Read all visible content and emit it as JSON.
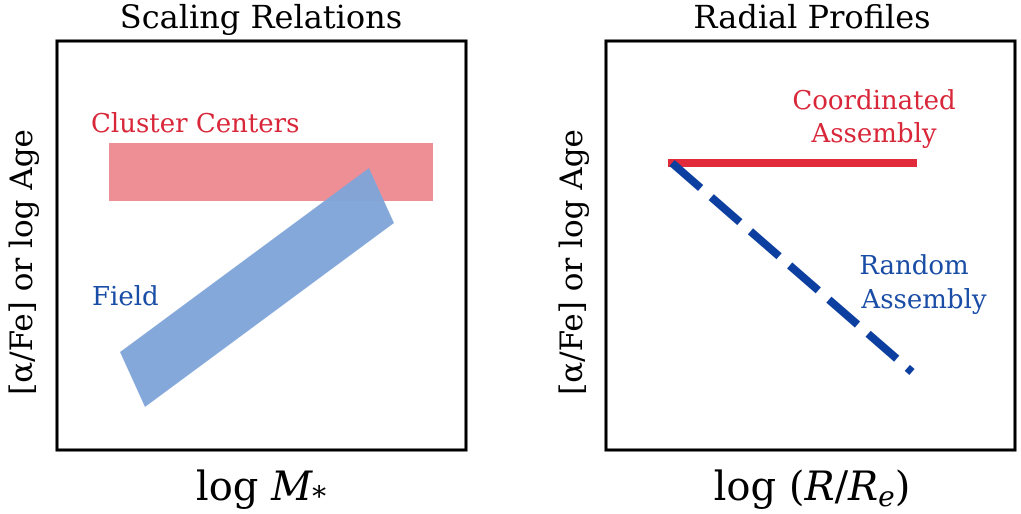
{
  "left_panel": {
    "title": "Scaling Relations",
    "ylabel": "[α/Fe] or log Age",
    "xlabel_main": "log ",
    "xlabel_var": "M",
    "xlabel_sub": "*",
    "labels": {
      "cluster": "Cluster Centers",
      "field": "Field"
    }
  },
  "right_panel": {
    "title": "Radial Profiles",
    "ylabel": "[α/Fe] or log Age",
    "xlabel_main": "log (",
    "xlabel_var1": "R",
    "xlabel_slash": "/",
    "xlabel_var2": "R",
    "xlabel_sub": "e",
    "xlabel_close": ")",
    "labels": {
      "coordinated_line1": "Coordinated",
      "coordinated_line2": "Assembly",
      "random_line1": "Random",
      "random_line2": "Assembly"
    }
  },
  "colors": {
    "red_text": "#d9273a",
    "red_band": "#ee8f96",
    "red_line": "#e12a3a",
    "blue_text": "#1a4ea6",
    "blue_band": "#7fa4d8",
    "blue_line": "#0d3fa0",
    "axis": "#000000"
  }
}
